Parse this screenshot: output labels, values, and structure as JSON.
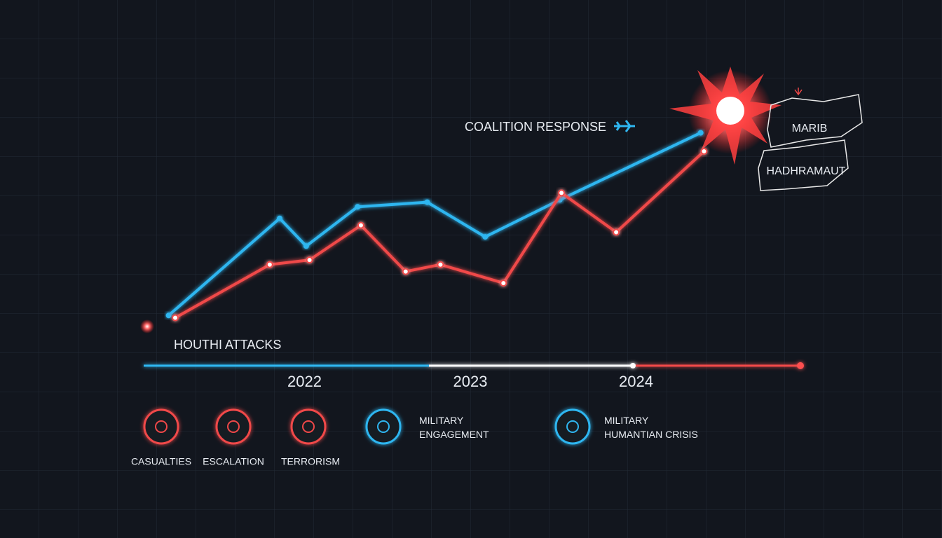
{
  "chart_data": {
    "type": "line",
    "xlim": [
      2021,
      2025
    ],
    "xticks": [
      2022,
      2023,
      2024
    ],
    "ylim": [
      0,
      100
    ],
    "series": [
      {
        "name": "COALITION RESPONSE",
        "color": "#2fb6f0",
        "x": [
          2021.18,
          2021.85,
          2022.01,
          2022.32,
          2022.74,
          2023.09,
          2023.54,
          2024.39
        ],
        "values": [
          9,
          51,
          39,
          56,
          58,
          43,
          59,
          88
        ]
      },
      {
        "name": "HOUTHI ATTACKS",
        "color": "#f04848",
        "x": [
          2021.22,
          2021.79,
          2022.03,
          2022.34,
          2022.61,
          2022.82,
          2023.2,
          2023.55,
          2023.88,
          2024.41
        ],
        "values": [
          8,
          31,
          33,
          48,
          28,
          31,
          23,
          62,
          45,
          80
        ]
      }
    ],
    "regions": [
      "MARIB",
      "HADHRAMAUT"
    ],
    "legend_items": [
      "CASUALTIES",
      "ESCALATION",
      "TERRORISM",
      "MILITARY ENGAGEMENT",
      "MILITARY HUMANTIAN CRISIS"
    ]
  }
}
